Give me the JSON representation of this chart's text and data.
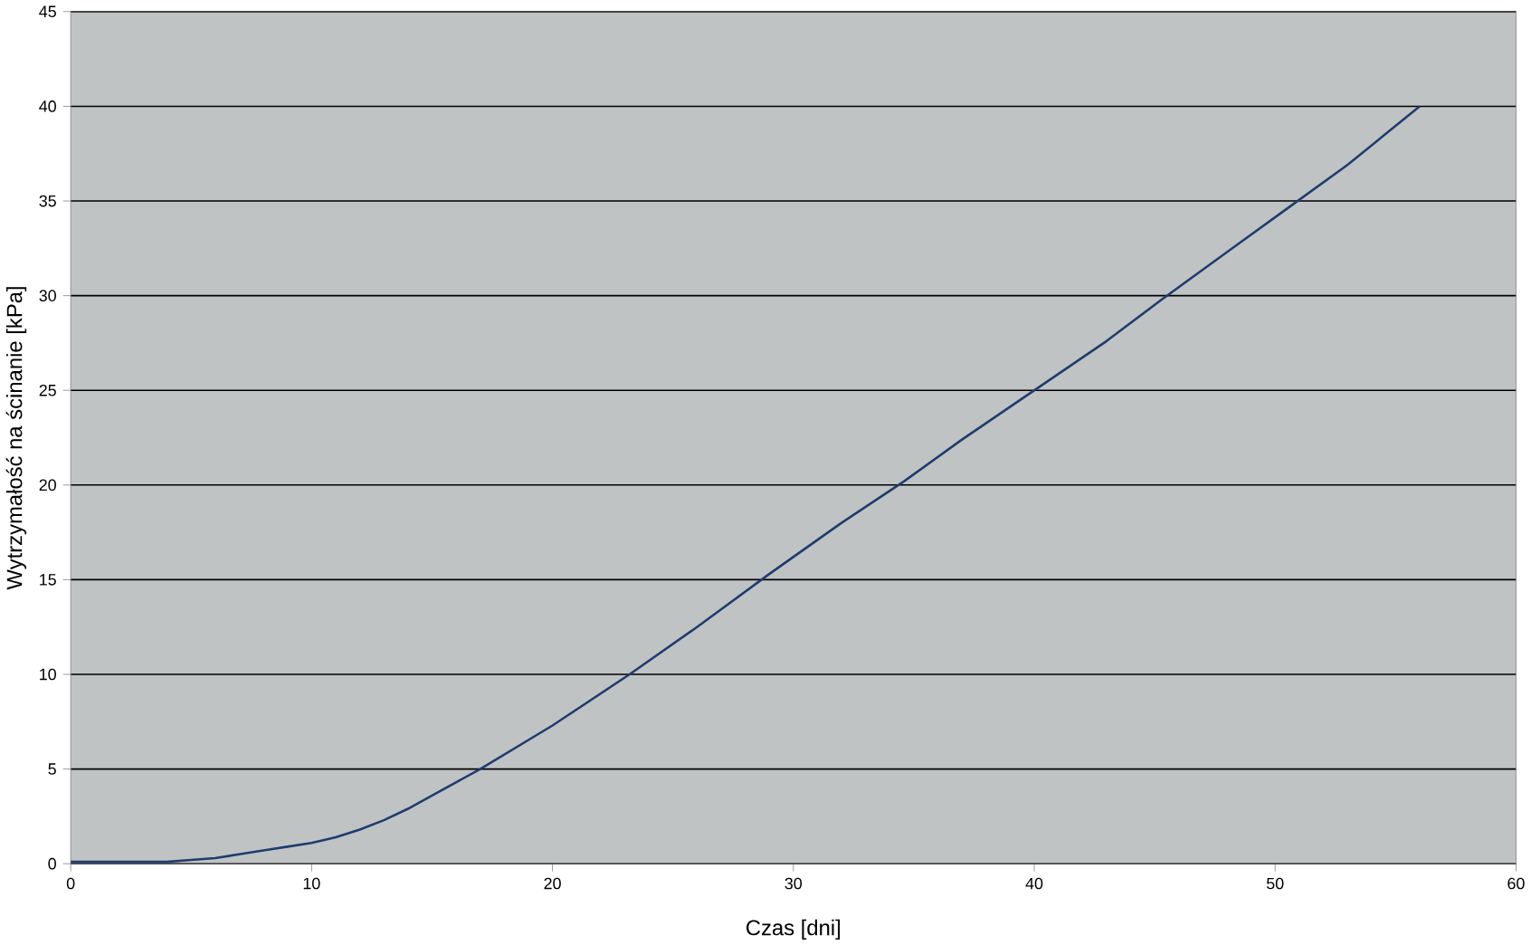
{
  "chart_data": {
    "type": "line",
    "xlabel": "Czas [dni]",
    "ylabel": "Wytrzymałość na ścinanie [kPa]",
    "x": [
      0,
      2,
      4,
      5,
      6,
      7,
      8,
      9,
      10,
      11,
      12,
      13,
      14,
      15,
      17,
      20,
      23.2,
      26,
      29,
      32,
      34.6,
      37,
      40,
      43,
      45.3,
      48,
      50.5,
      53,
      56
    ],
    "values": [
      0.1,
      0.1,
      0.1,
      0.2,
      0.3,
      0.5,
      0.7,
      0.9,
      1.1,
      1.4,
      1.8,
      2.3,
      2.9,
      3.6,
      5,
      7.3,
      10,
      12.5,
      15.3,
      18,
      20.2,
      22.4,
      25,
      27.6,
      29.8,
      32.3,
      34.6,
      36.9,
      40
    ],
    "color": "#1f3c6e",
    "xlim": [
      0,
      60
    ],
    "ylim": [
      0,
      45
    ],
    "xticks": [
      0,
      10,
      20,
      30,
      40,
      50,
      60
    ],
    "yticks": [
      0,
      5,
      10,
      15,
      20,
      25,
      30,
      35,
      40,
      45
    ],
    "grid": "y",
    "marker": "none",
    "line_style": "solid"
  }
}
